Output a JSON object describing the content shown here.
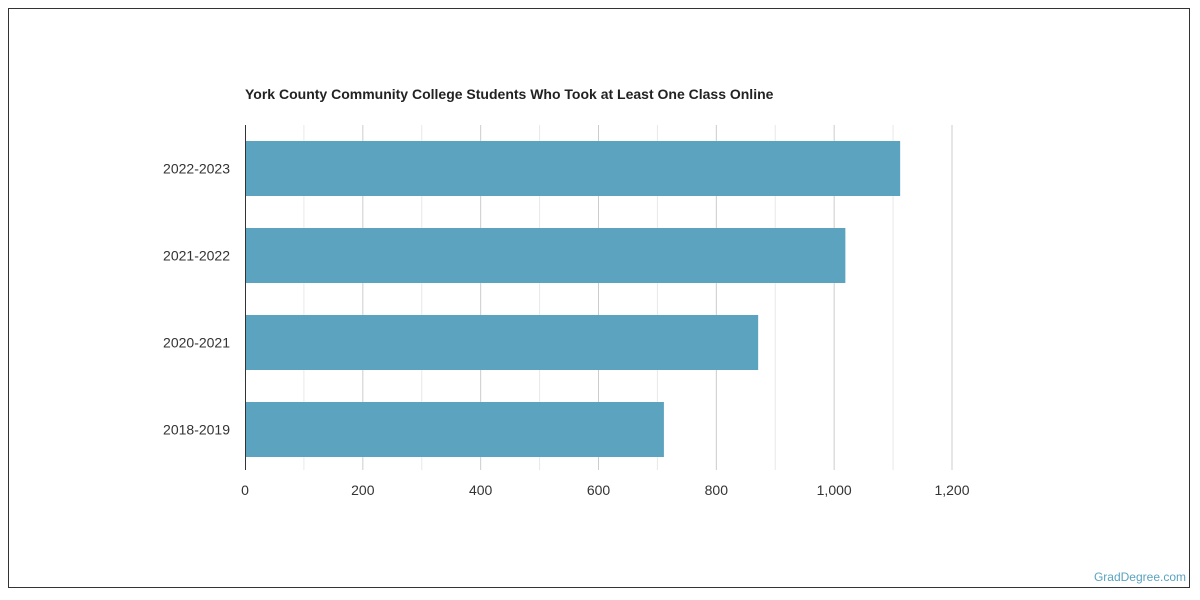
{
  "chart_data": {
    "type": "bar",
    "orientation": "horizontal",
    "title": "York County Community College Students Who Took at Least One Class Online",
    "categories": [
      "2022-2023",
      "2021-2022",
      "2020-2021",
      "2018-2019"
    ],
    "values": [
      1112,
      1019,
      871,
      711
    ],
    "x_ticks": [
      "0",
      "200",
      "400",
      "600",
      "800",
      "1,000",
      "1,200"
    ],
    "xlim": [
      0,
      1200
    ],
    "grid": true,
    "bar_color": "#5ba3be"
  },
  "watermark": "GradDegree.com"
}
